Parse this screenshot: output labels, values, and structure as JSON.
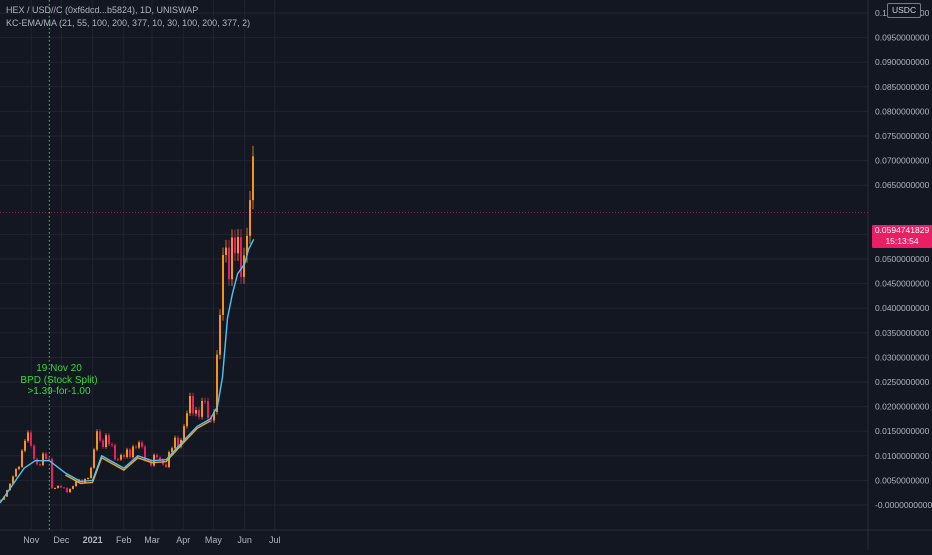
{
  "legend": {
    "symbol_line": "HEX / USD//C (0xf6dcd...b5824), 1D, UNISWAP",
    "indicator_line": "KC-EMA/MA (21, 55, 100, 200, 377, 10, 30, 100, 200, 377, 2)"
  },
  "unit_badge": "USDC",
  "current_price": {
    "value": "0.0594741829",
    "countdown": "15:13:54"
  },
  "annotation": {
    "line1": "19 Nov 20",
    "line2": "BPD (Stock Split)",
    "line3": ">1.39-for-1.00"
  },
  "colors": {
    "background": "#131722",
    "grid": "#1f2430",
    "candle_up": "#f7931a",
    "candle_down": "#e91e63",
    "ema_fast": "#f5a623",
    "ema_slow": "#4fc3f7",
    "annotation": "#3cd63c",
    "price_tag": "#e91e63"
  },
  "chart_data": {
    "type": "line",
    "title": "",
    "xlabel": "",
    "ylabel": "",
    "ylim": [
      -0.0002,
      0.105
    ],
    "x_ticks": [
      "Nov",
      "Dec",
      "2021",
      "Feb",
      "Mar",
      "Apr",
      "May",
      "Jun",
      "Jul"
    ],
    "y_ticks": [
      "0.1000000000",
      "0.0950000000",
      "0.0900000000",
      "0.0850000000",
      "0.0800000000",
      "0.0750000000",
      "0.0700000000",
      "0.0650000000",
      "0.0550000000",
      "0.0500000000",
      "0.0450000000",
      "0.0400000000",
      "0.0350000000",
      "0.0300000000",
      "0.0250000000",
      "0.0200000000",
      "0.0150000000",
      "0.0100000000",
      "0.0050000000",
      "-0.0000000000"
    ],
    "grid": true,
    "series": [
      {
        "kind": "candlestick",
        "x": [
          "2020-10-01",
          "2020-10-15",
          "2020-10-25",
          "2020-11-05",
          "2020-11-19",
          "2020-11-20",
          "2020-12-05",
          "2020-12-20",
          "2021-01-01",
          "2021-01-02",
          "2021-01-15",
          "2021-02-01",
          "2021-02-10",
          "2021-02-20",
          "2021-03-01",
          "2021-03-15",
          "2021-04-01",
          "2021-04-10",
          "2021-04-20",
          "2021-04-28",
          "2021-05-05",
          "2021-05-12",
          "2021-05-20",
          "2021-05-25",
          "2021-05-30",
          "2021-06-03",
          "2021-06-08",
          "2021-06-10"
        ],
        "values": [
          0.001,
          0.006,
          0.014,
          0.009,
          0.009,
          0.004,
          0.003,
          0.005,
          0.007,
          0.016,
          0.012,
          0.009,
          0.013,
          0.01,
          0.009,
          0.009,
          0.016,
          0.021,
          0.019,
          0.018,
          0.03,
          0.057,
          0.05,
          0.047,
          0.056,
          0.057,
          0.061,
          0.0595
        ]
      },
      {
        "name": "",
        "kind": "ema",
        "x": [
          "2020-10-01",
          "2020-10-25",
          "2020-11-05",
          "2020-11-19",
          "2020-12-05",
          "2020-12-20",
          "2021-01-01",
          "2021-01-10",
          "2021-02-01",
          "2021-02-15",
          "2021-03-01",
          "2021-03-15",
          "2021-04-01",
          "2021-04-15",
          "2021-04-28",
          "2021-05-05",
          "2021-05-10",
          "2021-05-15",
          "2021-05-20",
          "2021-05-25",
          "2021-06-01",
          "2021-06-05",
          "2021-06-10"
        ],
        "values": [
          0.0004,
          0.0075,
          0.009,
          0.009,
          0.0065,
          0.0048,
          0.005,
          0.01,
          0.0075,
          0.01,
          0.009,
          0.0092,
          0.013,
          0.016,
          0.0175,
          0.02,
          0.026,
          0.038,
          0.043,
          0.047,
          0.049,
          0.052,
          0.054
        ]
      }
    ]
  }
}
